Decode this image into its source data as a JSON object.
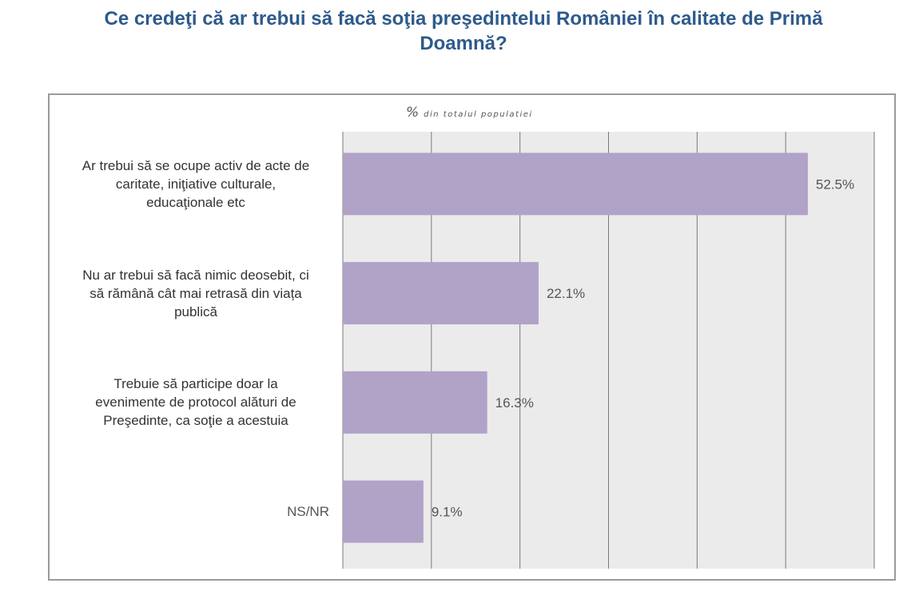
{
  "title_line1": "Ce credeţi că ar trebui să facă soţia preşedintelui României în calitate de Primă",
  "title_line2": "Doamnă?",
  "unit_label_pct": "%",
  "unit_label_text": "din totalul populatiei",
  "colors": {
    "title": "#2e5a8c",
    "bar": "#b1a2c8",
    "grid_bg": "#ebebeb",
    "grid_line": "#7a7a7a",
    "frame": "#9a9a9a",
    "value_text": "#555555"
  },
  "chart_data": {
    "type": "bar",
    "orientation": "horizontal",
    "title": "Ce credeţi că ar trebui să facă soţia preşedintelui României în calitate de Primă Doamnă?",
    "unit": "% din totalul populatiei",
    "categories": [
      [
        "Ar trebui să se ocupe activ de acte de",
        "caritate, iniţiative culturale,",
        "educaţionale etc"
      ],
      [
        "Nu ar trebui să facă nimic deosebit, ci",
        "să rămână cât mai retrasă din viața",
        "publică"
      ],
      [
        "Trebuie să participe doar la",
        "evenimente de protocol alături de",
        "Preşedinte, ca soţie a acestuia"
      ],
      [
        "NS/NR"
      ]
    ],
    "values": [
      52.5,
      22.1,
      16.3,
      9.1
    ],
    "value_labels": [
      "52.5%",
      "22.1%",
      "16.3%",
      "9.1%"
    ],
    "xlim": [
      0,
      60
    ],
    "grid": true,
    "tick_labels_shown": false
  }
}
